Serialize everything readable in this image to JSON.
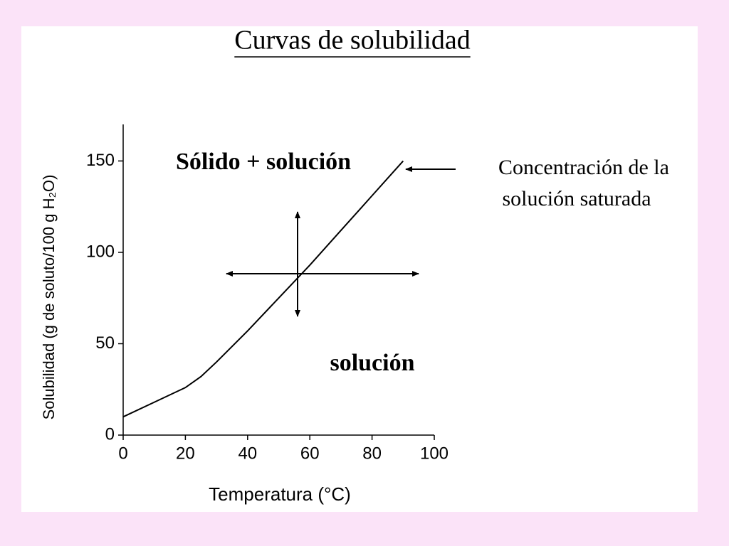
{
  "chart_data": {
    "type": "line",
    "title": "Curvas de solubilidad",
    "x_label": "Temperatura (°C)",
    "y_label": "Solubilidad (g de soluto/100 g H₂O)",
    "x": [
      0,
      10,
      20,
      25,
      30,
      40,
      50,
      60,
      70,
      80,
      90
    ],
    "values": [
      10,
      18,
      26,
      32,
      40,
      57,
      75,
      93,
      112,
      131,
      150
    ],
    "color": "#000000",
    "xlim": [
      0,
      100
    ],
    "xticks": [
      0,
      20,
      40,
      60,
      80,
      100
    ],
    "ylim": [
      0,
      170
    ],
    "yticks": [
      0,
      50,
      100,
      150
    ],
    "annotations": [
      "Sólido + solución",
      "solución",
      "Concentración de la",
      "solución saturada"
    ]
  }
}
